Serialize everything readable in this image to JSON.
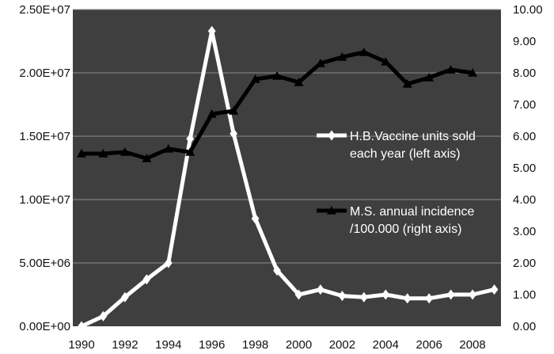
{
  "chart_data": {
    "type": "line",
    "title": "",
    "xlabel": "",
    "ylabel_left": "",
    "ylabel_right": "",
    "x_tick_labels": [
      "1990",
      "1992",
      "1994",
      "1996",
      "1998",
      "2000",
      "2002",
      "2004",
      "2006",
      "2008"
    ],
    "left_axis": {
      "ylim": [
        0,
        25000000
      ],
      "tick_labels": [
        "0.00E+00",
        "5.00E+06",
        "1.00E+07",
        "1.50E+07",
        "2.00E+07",
        "2.50E+07"
      ]
    },
    "right_axis": {
      "ylim": [
        0,
        10
      ],
      "tick_labels": [
        "0.00",
        "1.00",
        "2.00",
        "3.00",
        "4.00",
        "5.00",
        "6.00",
        "7.00",
        "8.00",
        "9.00",
        "10.00"
      ]
    },
    "grid": true,
    "background_color": "#3f3f3f",
    "legend_placement": "right",
    "series": [
      {
        "name": "H.B.Vaccine units sold each year (left axis)",
        "legend_lines": [
          "H.B.Vaccine units sold",
          "each year (left axis)"
        ],
        "axis": "left",
        "color": "#ffffff",
        "marker": "diamond",
        "x": [
          1990,
          1991,
          1992,
          1993,
          1994,
          1995,
          1996,
          1997,
          1998,
          1999,
          2000,
          2001,
          2002,
          2003,
          2004,
          2005,
          2006,
          2007,
          2008,
          2009
        ],
        "values": [
          0,
          800000,
          2300000,
          3700000,
          5000000,
          14800000,
          23300000,
          15200000,
          8500000,
          4400000,
          2500000,
          2900000,
          2400000,
          2300000,
          2500000,
          2200000,
          2200000,
          2500000,
          2500000,
          2900000
        ]
      },
      {
        "name": "M.S. annual incidence /100.000 (right axis)",
        "legend_lines": [
          "M.S. annual incidence",
          "/100.000 (right axis)"
        ],
        "axis": "right",
        "color": "#000000",
        "marker": "triangle",
        "x": [
          1990,
          1991,
          1992,
          1993,
          1994,
          1995,
          1996,
          1997,
          1998,
          1999,
          2000,
          2001,
          2002,
          2003,
          2004,
          2005,
          2006,
          2007,
          2008
        ],
        "values": [
          5.45,
          5.45,
          5.5,
          5.3,
          5.6,
          5.5,
          6.7,
          6.8,
          7.8,
          7.9,
          7.7,
          8.3,
          8.5,
          8.65,
          8.35,
          7.65,
          7.85,
          8.1,
          8.0
        ]
      }
    ]
  }
}
